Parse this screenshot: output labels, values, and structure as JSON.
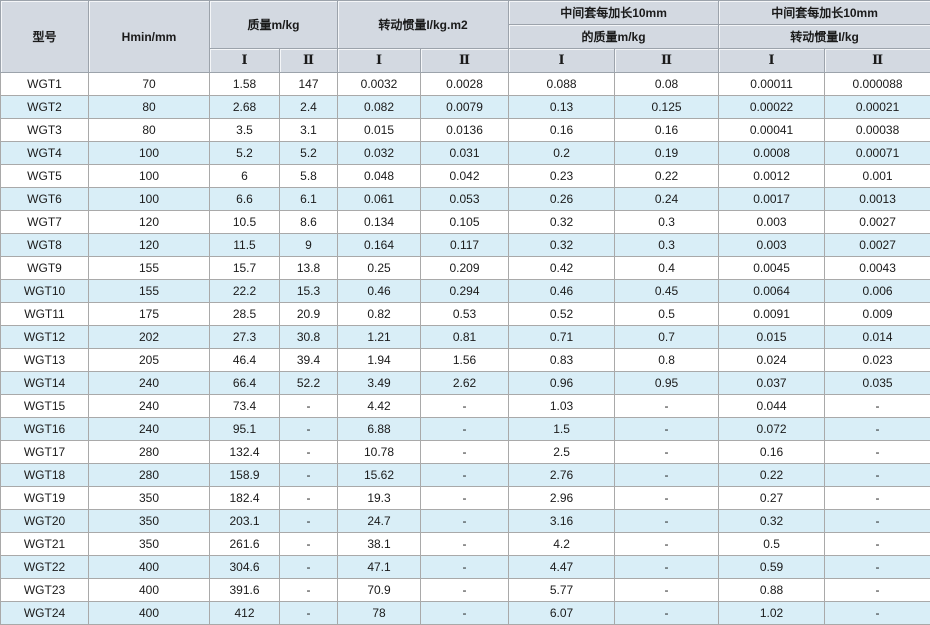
{
  "colors": {
    "header_bg": "#d3d9e1",
    "header_line": "#9ca3ab",
    "grid_line": "#a9a9a9",
    "stripe_bg": "#d9eef7",
    "row_bg": "#ffffff",
    "text": "#1a1a1a"
  },
  "chart_data": {
    "type": "table",
    "columns": {
      "model": "型号",
      "hmin": "Hmin/mm",
      "mass_group": "质量m/kg",
      "inertia_group": "转动惯量I/kg.m2",
      "ext_mass_group_line1": "中间套每加长10mm",
      "ext_mass_group_line2": "的质量m/kg",
      "ext_inertia_group_line1": "中间套每加长10mm",
      "ext_inertia_group_line2": "转动惯量I/kg",
      "sub_col_1": "Ⅰ",
      "sub_col_2": "Ⅱ"
    },
    "rows": [
      [
        "WGT1",
        "70",
        "1.58",
        "147",
        "0.0032",
        "0.0028",
        "0.088",
        "0.08",
        "0.00011",
        "0.000088"
      ],
      [
        "WGT2",
        "80",
        "2.68",
        "2.4",
        "0.082",
        "0.0079",
        "0.13",
        "0.125",
        "0.00022",
        "0.00021"
      ],
      [
        "WGT3",
        "80",
        "3.5",
        "3.1",
        "0.015",
        "0.0136",
        "0.16",
        "0.16",
        "0.00041",
        "0.00038"
      ],
      [
        "WGT4",
        "100",
        "5.2",
        "5.2",
        "0.032",
        "0.031",
        "0.2",
        "0.19",
        "0.0008",
        "0.00071"
      ],
      [
        "WGT5",
        "100",
        "6",
        "5.8",
        "0.048",
        "0.042",
        "0.23",
        "0.22",
        "0.0012",
        "0.001"
      ],
      [
        "WGT6",
        "100",
        "6.6",
        "6.1",
        "0.061",
        "0.053",
        "0.26",
        "0.24",
        "0.0017",
        "0.0013"
      ],
      [
        "WGT7",
        "120",
        "10.5",
        "8.6",
        "0.134",
        "0.105",
        "0.32",
        "0.3",
        "0.003",
        "0.0027"
      ],
      [
        "WGT8",
        "120",
        "11.5",
        "9",
        "0.164",
        "0.117",
        "0.32",
        "0.3",
        "0.003",
        "0.0027"
      ],
      [
        "WGT9",
        "155",
        "15.7",
        "13.8",
        "0.25",
        "0.209",
        "0.42",
        "0.4",
        "0.0045",
        "0.0043"
      ],
      [
        "WGT10",
        "155",
        "22.2",
        "15.3",
        "0.46",
        "0.294",
        "0.46",
        "0.45",
        "0.0064",
        "0.006"
      ],
      [
        "WGT11",
        "175",
        "28.5",
        "20.9",
        "0.82",
        "0.53",
        "0.52",
        "0.5",
        "0.0091",
        "0.009"
      ],
      [
        "WGT12",
        "202",
        "27.3",
        "30.8",
        "1.21",
        "0.81",
        "0.71",
        "0.7",
        "0.015",
        "0.014"
      ],
      [
        "WGT13",
        "205",
        "46.4",
        "39.4",
        "1.94",
        "1.56",
        "0.83",
        "0.8",
        "0.024",
        "0.023"
      ],
      [
        "WGT14",
        "240",
        "66.4",
        "52.2",
        "3.49",
        "2.62",
        "0.96",
        "0.95",
        "0.037",
        "0.035"
      ],
      [
        "WGT15",
        "240",
        "73.4",
        "-",
        "4.42",
        "-",
        "1.03",
        "-",
        "0.044",
        "-"
      ],
      [
        "WGT16",
        "240",
        "95.1",
        "-",
        "6.88",
        "-",
        "1.5",
        "-",
        "0.072",
        "-"
      ],
      [
        "WGT17",
        "280",
        "132.4",
        "-",
        "10.78",
        "-",
        "2.5",
        "-",
        "0.16",
        "-"
      ],
      [
        "WGT18",
        "280",
        "158.9",
        "-",
        "15.62",
        "-",
        "2.76",
        "-",
        "0.22",
        "-"
      ],
      [
        "WGT19",
        "350",
        "182.4",
        "-",
        "19.3",
        "-",
        "2.96",
        "-",
        "0.27",
        "-"
      ],
      [
        "WGT20",
        "350",
        "203.1",
        "-",
        "24.7",
        "-",
        "3.16",
        "-",
        "0.32",
        "-"
      ],
      [
        "WGT21",
        "350",
        "261.6",
        "-",
        "38.1",
        "-",
        "4.2",
        "-",
        "0.5",
        "-"
      ],
      [
        "WGT22",
        "400",
        "304.6",
        "-",
        "47.1",
        "-",
        "4.47",
        "-",
        "0.59",
        "-"
      ],
      [
        "WGT23",
        "400",
        "391.6",
        "-",
        "70.9",
        "-",
        "5.77",
        "-",
        "0.88",
        "-"
      ],
      [
        "WGT24",
        "400",
        "412",
        "-",
        "78",
        "-",
        "6.07",
        "-",
        "1.02",
        "-"
      ]
    ]
  }
}
